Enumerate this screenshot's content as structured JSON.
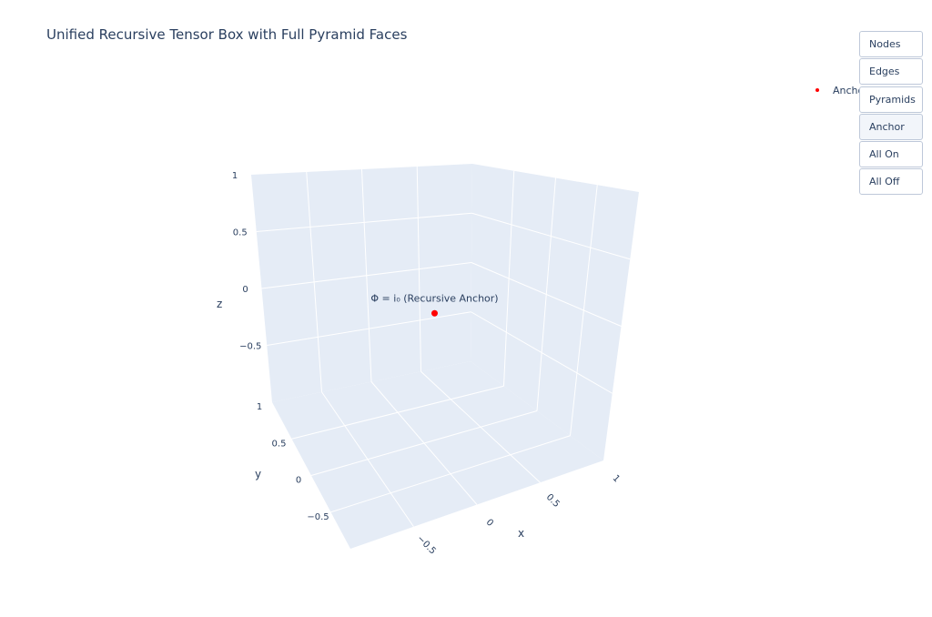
{
  "chart_data": {
    "type": "scatter",
    "title": "Unified Recursive Tensor Box with Full Pyramid Faces",
    "series": [
      {
        "name": "Anchor",
        "color": "#ff0000",
        "points": [
          {
            "x": 0,
            "y": 0,
            "z": 0
          }
        ]
      }
    ],
    "annotations": [
      {
        "text": "Φ = i₀ (Recursive Anchor)",
        "x": 0,
        "y": 0,
        "z": 0
      }
    ],
    "xlabel": "x",
    "ylabel": "y",
    "zlabel": "z",
    "xlim": [
      -1,
      1
    ],
    "ylim": [
      -1,
      1
    ],
    "zlim": [
      -1,
      1
    ],
    "xticks": [
      "−0.5",
      "0",
      "0.5",
      "1"
    ],
    "yticks": [
      "−0.5",
      "0",
      "0.5",
      "1"
    ],
    "zticks": [
      "−0.5",
      "0",
      "0.5",
      "1"
    ],
    "grid": true,
    "legend": "top-right",
    "scene_bg": "#e5ecf6",
    "grid_color": "#ffffff"
  },
  "buttons": [
    {
      "label": "Nodes"
    },
    {
      "label": "Edges"
    },
    {
      "label": "Pyramids"
    },
    {
      "label": "Anchor",
      "active": true
    },
    {
      "label": "All On"
    },
    {
      "label": "All Off"
    }
  ]
}
